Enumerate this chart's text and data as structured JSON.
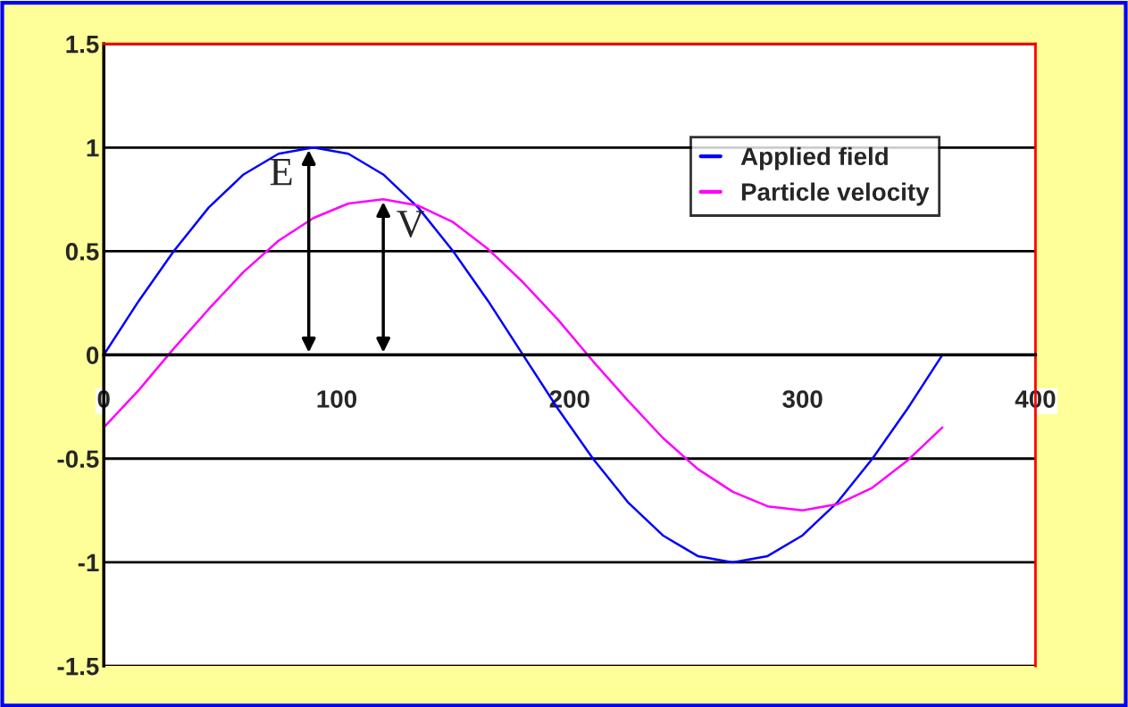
{
  "chart_data": {
    "type": "line",
    "x": [
      0,
      15,
      30,
      45,
      60,
      75,
      90,
      105,
      120,
      135,
      150,
      165,
      180,
      195,
      210,
      225,
      240,
      255,
      270,
      285,
      300,
      315,
      330,
      345,
      360
    ],
    "series": [
      {
        "name": "Applied field",
        "color": "#0000ff",
        "values": [
          0,
          0.26,
          0.5,
          0.71,
          0.87,
          0.97,
          1,
          0.97,
          0.87,
          0.71,
          0.5,
          0.26,
          0,
          -0.26,
          -0.5,
          -0.71,
          -0.87,
          -0.97,
          -1,
          -0.97,
          -0.87,
          -0.71,
          -0.5,
          -0.26,
          0
        ]
      },
      {
        "name": "Particle velocity",
        "color": "#ff00ff",
        "values": [
          -0.35,
          -0.17,
          0.03,
          0.22,
          0.4,
          0.55,
          0.66,
          0.73,
          0.75,
          0.72,
          0.64,
          0.51,
          0.35,
          0.17,
          -0.03,
          -0.22,
          -0.4,
          -0.55,
          -0.66,
          -0.73,
          -0.75,
          -0.72,
          -0.64,
          -0.51,
          -0.35
        ]
      }
    ],
    "xlim": [
      0,
      400
    ],
    "xticks": [
      0,
      100,
      200,
      300,
      400
    ],
    "ylim": [
      -1.5,
      1.5
    ],
    "yticks": [
      -1.5,
      -1,
      -0.5,
      0,
      0.5,
      1,
      1.5
    ],
    "grid": "y",
    "legend": "top right",
    "marker": "none",
    "line_style": "solid",
    "annotations": [
      {
        "text": "E",
        "x": 88,
        "y": 1
      },
      {
        "text": "V",
        "x": 120,
        "y": 0.75
      }
    ]
  }
}
